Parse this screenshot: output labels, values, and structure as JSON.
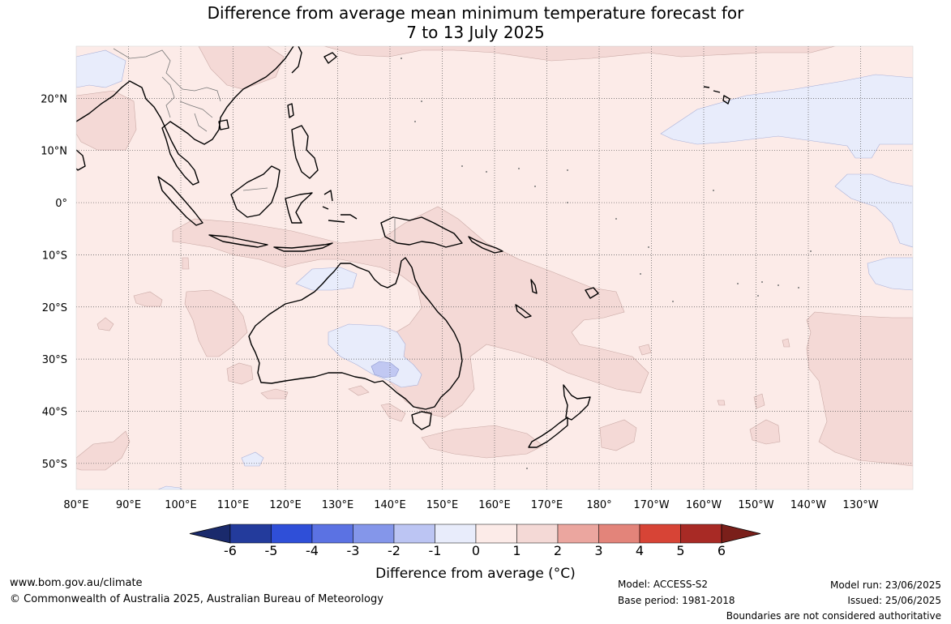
{
  "title": {
    "line1": "Difference from average mean minimum temperature forecast for",
    "line2": "7 to 13 July 2025"
  },
  "map": {
    "x_axis_labels": [
      "80°E",
      "90°E",
      "100°E",
      "110°E",
      "120°E",
      "130°E",
      "140°E",
      "150°E",
      "160°E",
      "170°E",
      "180°",
      "170°W",
      "160°W",
      "150°W",
      "140°W",
      "130°W"
    ],
    "y_axis_labels": [
      "20°N",
      "10°N",
      "0°",
      "10°S",
      "20°S",
      "30°S",
      "40°S",
      "50°S"
    ],
    "lon_range": [
      80,
      240
    ],
    "lat_range": [
      -55,
      30
    ],
    "grid": true,
    "colors": {
      "background_anomaly": "#fcebe8",
      "warm_1_2": "#f4d9d6",
      "cool_0_-1": "#e8ecfb",
      "cool_-1_-2": "#c1c8f2",
      "coast": "#000000",
      "border": "#808080"
    }
  },
  "colorbar": {
    "ticks": [
      "-6",
      "-5",
      "-4",
      "-3",
      "-2",
      "-1",
      "0",
      "1",
      "2",
      "3",
      "4",
      "5",
      "6"
    ],
    "colors": [
      "#1a2a6c",
      "#233b9c",
      "#2f4fd8",
      "#5b72e3",
      "#8496ea",
      "#bcc5f3",
      "#e8ecfb",
      "#fcebe8",
      "#f4d9d6",
      "#eba69f",
      "#e3847a",
      "#d74436",
      "#a82a25",
      "#7a1f1a"
    ],
    "label": "Difference from average (°C)"
  },
  "footer": {
    "website": "www.bom.gov.au/climate",
    "copyright": "© Commonwealth of Australia 2025, Australian Bureau of Meteorology",
    "model": "Model: ACCESS-S2",
    "base_period": "Base period: 1981-2018",
    "model_run": "Model run: 23/06/2025",
    "issued": "Issued: 25/06/2025",
    "disclaimer": "Boundaries are not considered authoritative"
  }
}
